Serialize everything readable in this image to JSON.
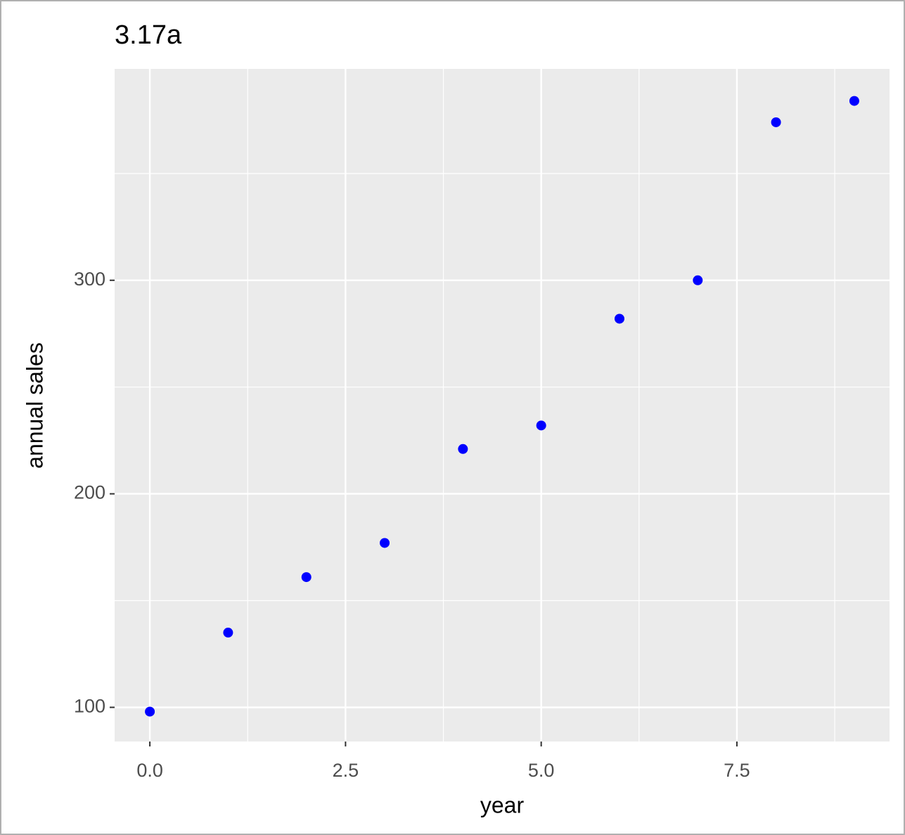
{
  "chart_data": {
    "type": "scatter",
    "title": "3.17a",
    "x_label": "year",
    "y_label": "annual sales",
    "series": [
      {
        "color": "#0000ff",
        "x": [
          0,
          1,
          2,
          3,
          4,
          5,
          6,
          7,
          8,
          9
        ],
        "values": [
          98,
          135,
          161,
          177,
          221,
          232,
          282,
          300,
          374,
          384
        ]
      }
    ],
    "xlim": [
      -0.45,
      9.45
    ],
    "ylim": [
      84,
      399
    ],
    "xticks": [
      {
        "value": 0,
        "label": "0.0"
      },
      2.5,
      {
        "value": 5,
        "label": "5.0"
      },
      7.5
    ],
    "yticks": [
      100,
      200,
      300
    ],
    "grid": true
  }
}
